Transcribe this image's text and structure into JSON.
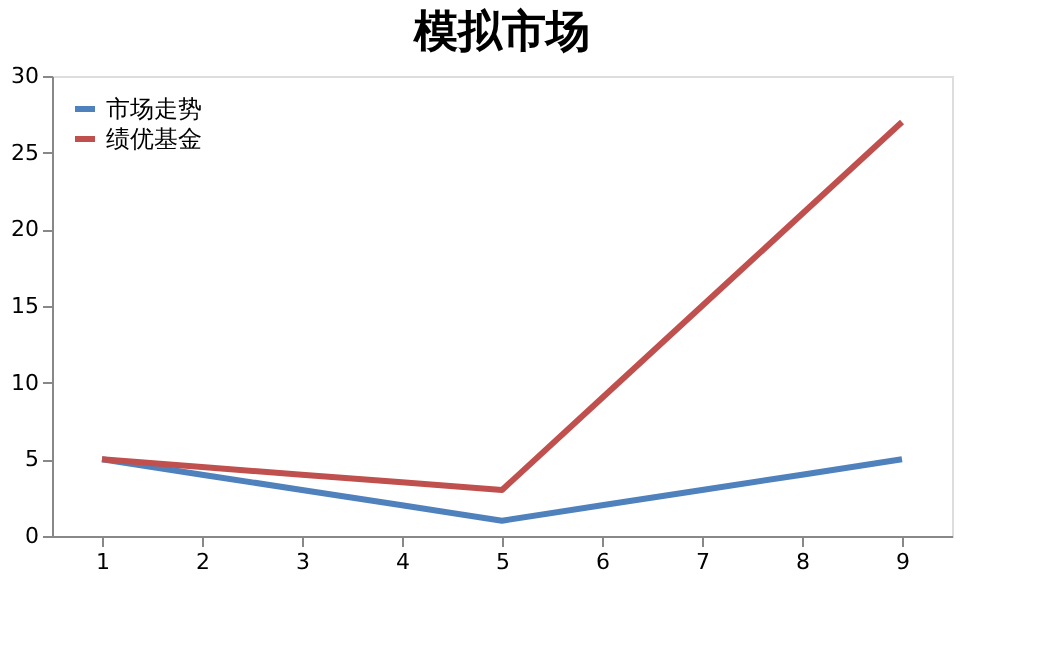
{
  "chart_data": {
    "type": "line",
    "title": "模拟市场",
    "categories": [
      "1",
      "2",
      "3",
      "4",
      "5",
      "6",
      "7",
      "8",
      "9"
    ],
    "series": [
      {
        "name": "市场走势",
        "color": "#4f81bd",
        "values": [
          5,
          4,
          3,
          2,
          1,
          2,
          3,
          4,
          5
        ]
      },
      {
        "name": "绩优基金",
        "color": "#c0504d",
        "values": [
          5,
          4.5,
          4,
          3.5,
          3,
          9,
          15,
          21,
          27
        ]
      }
    ],
    "ylim": [
      0,
      30
    ],
    "yticks": [
      0,
      5,
      10,
      15,
      20,
      25,
      30
    ],
    "grid": false,
    "legend": "top left",
    "marker": "none",
    "line_style": "solid"
  }
}
